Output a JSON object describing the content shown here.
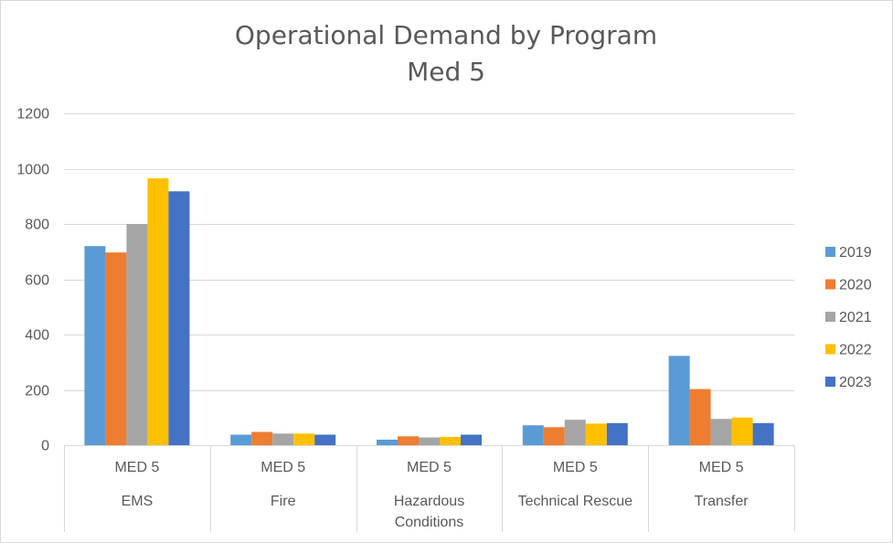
{
  "chart_data": {
    "type": "bar",
    "title": "Operational Demand by Program",
    "subtitle": "Med 5",
    "group_label": "MED 5",
    "categories": [
      "EMS",
      "Fire",
      "Hazardous Conditions",
      "Technical Rescue",
      "Transfer"
    ],
    "category_lines": [
      [
        "EMS"
      ],
      [
        "Fire"
      ],
      [
        "Hazardous",
        "Conditions"
      ],
      [
        "Technical Rescue"
      ],
      [
        "Transfer"
      ]
    ],
    "series": [
      {
        "name": "2019",
        "color": "#5b9bd5",
        "values": [
          720,
          38,
          20,
          72,
          323
        ]
      },
      {
        "name": "2020",
        "color": "#ed7d31",
        "values": [
          697,
          48,
          32,
          65,
          203
        ]
      },
      {
        "name": "2021",
        "color": "#a5a5a5",
        "values": [
          800,
          42,
          28,
          92,
          95
        ]
      },
      {
        "name": "2022",
        "color": "#ffc000",
        "values": [
          965,
          42,
          30,
          78,
          100
        ]
      },
      {
        "name": "2023",
        "color": "#4472c4",
        "values": [
          918,
          38,
          38,
          80,
          80
        ]
      }
    ],
    "ylim": [
      0,
      1200
    ],
    "yticks": [
      0,
      200,
      400,
      600,
      800,
      1000,
      1200
    ],
    "grid": true,
    "legend_position": "right"
  }
}
